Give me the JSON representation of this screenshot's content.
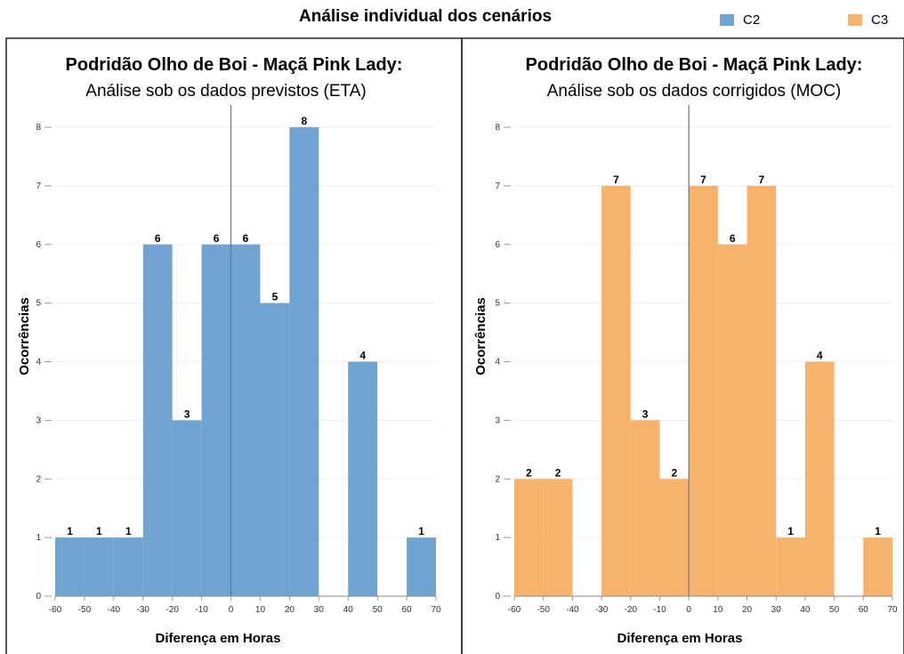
{
  "page": {
    "title": "Análise individual dos cenários"
  },
  "legend": [
    {
      "name": "C2",
      "color": "#6fa4d2"
    },
    {
      "name": "C3",
      "color": "#f7b26b"
    }
  ],
  "chart_data": [
    {
      "type": "bar",
      "title": "Podridão Olho de Boi - Maçã Pink Lady:",
      "subtitle": "Análise sob os dados previstos (ETA)",
      "xlabel": "Diferença em Horas",
      "ylabel": "Ocorrências",
      "series_name": "C2",
      "color": "#6fa4d2",
      "xlim": [
        -60,
        70
      ],
      "ylim": [
        0,
        8
      ],
      "xticks": [
        -60,
        -50,
        -40,
        -30,
        -20,
        -10,
        0,
        10,
        20,
        30,
        40,
        50,
        60,
        70
      ],
      "yticks": [
        0,
        1,
        2,
        3,
        4,
        5,
        6,
        7,
        8
      ],
      "bin_width": 10,
      "bins": [
        {
          "x0": -60,
          "value": 1
        },
        {
          "x0": -50,
          "value": 1
        },
        {
          "x0": -40,
          "value": 1
        },
        {
          "x0": -30,
          "value": 6
        },
        {
          "x0": -20,
          "value": 3
        },
        {
          "x0": -10,
          "value": 6
        },
        {
          "x0": 0,
          "value": 6
        },
        {
          "x0": 10,
          "value": 5
        },
        {
          "x0": 20,
          "value": 8
        },
        {
          "x0": 30,
          "value": 0
        },
        {
          "x0": 40,
          "value": 4
        },
        {
          "x0": 50,
          "value": 0
        },
        {
          "x0": 60,
          "value": 1
        }
      ]
    },
    {
      "type": "bar",
      "title": "Podridão Olho de Boi - Maçã Pink Lady:",
      "subtitle": "Análise sob os dados corrigidos (MOC)",
      "xlabel": "Diferença em Horas",
      "ylabel": "Ocorrências",
      "series_name": "C3",
      "color": "#f7b26b",
      "xlim": [
        -60,
        70
      ],
      "ylim": [
        0,
        8
      ],
      "xticks": [
        -60,
        -50,
        -40,
        -30,
        -20,
        -10,
        0,
        10,
        20,
        30,
        40,
        50,
        60,
        70
      ],
      "yticks": [
        0,
        1,
        2,
        3,
        4,
        5,
        6,
        7,
        8
      ],
      "bin_width": 10,
      "bins": [
        {
          "x0": -60,
          "value": 2
        },
        {
          "x0": -50,
          "value": 2
        },
        {
          "x0": -40,
          "value": 0
        },
        {
          "x0": -30,
          "value": 7
        },
        {
          "x0": -20,
          "value": 3
        },
        {
          "x0": -10,
          "value": 2
        },
        {
          "x0": 0,
          "value": 7
        },
        {
          "x0": 10,
          "value": 6
        },
        {
          "x0": 20,
          "value": 7
        },
        {
          "x0": 30,
          "value": 1
        },
        {
          "x0": 40,
          "value": 4
        },
        {
          "x0": 50,
          "value": 0
        },
        {
          "x0": 60,
          "value": 1
        }
      ]
    }
  ]
}
